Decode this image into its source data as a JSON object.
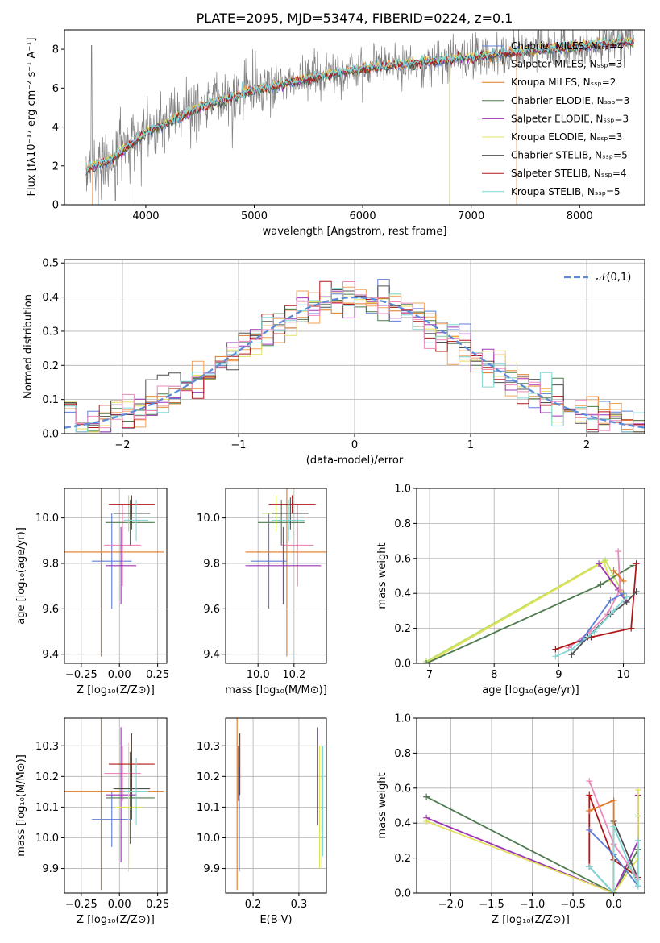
{
  "title": "PLATE=2095, MJD=53474, FIBERID=0224, z=0.1",
  "colors": {
    "Chabrier MILES": "#5b7fd6",
    "Salpeter MILES": "#f2a35a",
    "Kroupa MILES": "#e07820",
    "Chabrier ELODIE": "#4e7a4e",
    "Salpeter ELODIE": "#9b35b5",
    "Kroupa ELODIE": "#e4e060",
    "Chabrier STELIB": "#505050",
    "Salpeter STELIB": "#b01818",
    "Kroupa STELIB": "#7fd7d7",
    "pink": "#ee88bb",
    "lime": "#bde05e",
    "gauss": "#5b8bd6",
    "data": "#808080"
  },
  "chart_data": [
    {
      "type": "line",
      "title": "PLATE=2095, MJD=53474, FIBERID=0224, z=0.1",
      "xlabel": "wavelength [Angstrom, rest frame]",
      "ylabel": "Flux [fλ10⁻¹⁷ erg cm⁻² s⁻¹ A⁻¹]",
      "xlim": [
        3250,
        8600
      ],
      "ylim": [
        0,
        9
      ],
      "xticks": [
        "4000",
        "5000",
        "6000",
        "7000",
        "8000"
      ],
      "yticks": [
        "0",
        "2",
        "4",
        "6",
        "8"
      ],
      "legend": "top-right",
      "legend_entries": [
        "Chabrier MILES, Nₛₛₚ=4",
        "Salpeter MILES, Nₛₛₚ=3",
        "Kroupa MILES, Nₛₛₚ=2",
        "Chabrier ELODIE, Nₛₛₚ=3",
        "Salpeter ELODIE, Nₛₛₚ=3",
        "Kroupa ELODIE, Nₛₛₚ=3",
        "Chabrier STELIB, Nₛₛₚ=5",
        "Salpeter STELIB, Nₛₛₚ=4",
        "Kroupa STELIB, Nₛₛₚ=5"
      ],
      "continuum": {
        "x": [
          3450,
          3700,
          4000,
          4500,
          5000,
          5500,
          6000,
          6500,
          7000,
          7500,
          8000,
          8500
        ],
        "y": [
          1.8,
          2.4,
          3.7,
          5.0,
          5.9,
          6.5,
          7.0,
          7.3,
          7.6,
          7.9,
          8.2,
          8.4
        ]
      }
    },
    {
      "type": "histogram",
      "xlabel": "(data-model)/error",
      "ylabel": "Normed distribution",
      "xlim": [
        -2.5,
        2.5
      ],
      "ylim": [
        0,
        0.51
      ],
      "xticks": [
        "−2",
        "−1",
        "0",
        "1",
        "2"
      ],
      "yticks": [
        "0.0",
        "0.1",
        "0.2",
        "0.3",
        "0.4",
        "0.5"
      ],
      "legend": "top-right",
      "legend_entry": "𝒩(0,1)",
      "grid": true,
      "bins": {
        "start": -2.5,
        "width": 0.1,
        "count": 50
      }
    },
    {
      "type": "errorbar",
      "xlabel": "Z [log₁₀(Z/Z⊙)]",
      "ylabel": "age  [log₁₀(age/yr)]",
      "xlim": [
        -0.36,
        0.31
      ],
      "ylim": [
        9.36,
        10.13
      ],
      "xticks": [
        "−0.25",
        "0.00",
        "0.25"
      ],
      "yticks": [
        "9.4",
        "9.6",
        "9.8",
        "10.0"
      ],
      "grid": true,
      "points": [
        {
          "x": -0.05,
          "y": 9.81,
          "xerr": 0.13,
          "yerr": 0.21,
          "c": "Chabrier MILES"
        },
        {
          "x": -0.12,
          "y": 9.85,
          "xerr": 0.41,
          "yerr": 0.46,
          "c": "Kroupa MILES"
        },
        {
          "x": 0.02,
          "y": 9.88,
          "xerr": 0.12,
          "yerr": 0.18,
          "c": "pink"
        },
        {
          "x": 0.07,
          "y": 9.98,
          "xerr": 0.16,
          "yerr": 0.1,
          "c": "Chabrier ELODIE"
        },
        {
          "x": 0.01,
          "y": 9.79,
          "xerr": 0.1,
          "yerr": 0.17,
          "c": "Salpeter ELODIE"
        },
        {
          "x": 0.06,
          "y": 10.02,
          "xerr": 0.09,
          "yerr": 0.08,
          "c": "lime"
        },
        {
          "x": 0.08,
          "y": 10.02,
          "xerr": 0.12,
          "yerr": 0.07,
          "c": "Chabrier STELIB"
        },
        {
          "x": 0.08,
          "y": 10.06,
          "xerr": 0.15,
          "yerr": 0.04,
          "c": "Salpeter STELIB"
        },
        {
          "x": 0.11,
          "y": 9.99,
          "xerr": 0.08,
          "yerr": 0.09,
          "c": "Kroupa STELIB"
        }
      ]
    },
    {
      "type": "errorbar",
      "xlabel": "mass [log₁₀(M/M⊙)]",
      "xlim": [
        9.82,
        10.38
      ],
      "ylim": [
        9.36,
        10.13
      ],
      "xticks": [
        "10.0",
        "10.2"
      ],
      "yticks": [
        "9.4",
        "9.6",
        "9.8",
        "10.0"
      ],
      "grid": true,
      "points": [
        {
          "x": 10.06,
          "y": 9.81,
          "xerr": 0.1,
          "yerr": 0.21,
          "c": "Chabrier MILES"
        },
        {
          "x": 10.16,
          "y": 9.85,
          "xerr": 0.23,
          "yerr": 0.46,
          "c": "Kroupa MILES"
        },
        {
          "x": 10.22,
          "y": 9.88,
          "xerr": 0.09,
          "yerr": 0.18,
          "c": "pink"
        },
        {
          "x": 10.13,
          "y": 9.98,
          "xerr": 0.13,
          "yerr": 0.1,
          "c": "Chabrier ELODIE"
        },
        {
          "x": 10.14,
          "y": 9.79,
          "xerr": 0.21,
          "yerr": 0.17,
          "c": "Salpeter ELODIE"
        },
        {
          "x": 10.1,
          "y": 10.02,
          "xerr": 0.08,
          "yerr": 0.08,
          "c": "lime"
        },
        {
          "x": 10.18,
          "y": 10.02,
          "xerr": 0.1,
          "yerr": 0.07,
          "c": "Chabrier STELIB"
        },
        {
          "x": 10.19,
          "y": 10.06,
          "xerr": 0.13,
          "yerr": 0.04,
          "c": "Salpeter STELIB"
        },
        {
          "x": 10.17,
          "y": 9.99,
          "xerr": 0.09,
          "yerr": 0.09,
          "c": "Kroupa STELIB"
        }
      ]
    },
    {
      "type": "line",
      "xlabel": "age  [log₁₀(age/yr)]",
      "ylabel": "mass weight",
      "xlim": [
        6.8,
        10.33
      ],
      "ylim": [
        0,
        1
      ],
      "xticks": [
        "7",
        "8",
        "9",
        "10"
      ],
      "yticks": [
        "0.0",
        "0.2",
        "0.4",
        "0.6",
        "0.8",
        "1.0"
      ],
      "grid": true,
      "series": [
        {
          "c": "lime",
          "x": [
            6.95,
            9.72,
            9.85,
            10.02
          ],
          "y": [
            0.01,
            0.59,
            0.5,
            0.38
          ]
        },
        {
          "c": "Kroupa ELODIE",
          "x": [
            6.95,
            9.7,
            9.8,
            10.0
          ],
          "y": [
            0.0,
            0.58,
            0.47,
            0.4
          ]
        },
        {
          "c": "Chabrier ELODIE",
          "x": [
            6.95,
            9.65,
            10.15
          ],
          "y": [
            0.0,
            0.45,
            0.56
          ]
        },
        {
          "c": "Salpeter ELODIE",
          "x": [
            9.62,
            9.92,
            10.05
          ],
          "y": [
            0.57,
            0.42,
            0.35
          ]
        },
        {
          "c": "pink",
          "x": [
            9.15,
            9.48,
            9.75,
            9.95,
            9.92
          ],
          "y": [
            0.09,
            0.18,
            0.28,
            0.42,
            0.64
          ]
        },
        {
          "c": "Salpeter STELIB",
          "x": [
            8.95,
            9.5,
            10.12,
            10.2
          ],
          "y": [
            0.08,
            0.15,
            0.2,
            0.57
          ]
        },
        {
          "c": "Chabrier STELIB",
          "x": [
            9.2,
            9.45,
            9.8,
            10.05,
            10.2
          ],
          "y": [
            0.05,
            0.15,
            0.28,
            0.35,
            0.41
          ]
        },
        {
          "c": "Kroupa STELIB",
          "x": [
            8.95,
            9.2,
            9.55,
            9.85,
            10.05
          ],
          "y": [
            0.04,
            0.08,
            0.18,
            0.3,
            0.38
          ]
        },
        {
          "c": "Chabrier MILES",
          "x": [
            9.35,
            9.8,
            10.0
          ],
          "y": [
            0.13,
            0.36,
            0.4
          ]
        },
        {
          "c": "Kroupa MILES",
          "x": [
            9.85,
            10.0
          ],
          "y": [
            0.53,
            0.47
          ]
        }
      ]
    },
    {
      "type": "errorbar",
      "xlabel": "Z [log₁₀(Z/Z⊙)]",
      "ylabel": "mass [log₁₀(M/M⊙)]",
      "xlim": [
        -0.36,
        0.31
      ],
      "ylim": [
        9.82,
        10.39
      ],
      "xticks": [
        "−0.25",
        "0.00",
        "0.25"
      ],
      "yticks": [
        "9.9",
        "10.0",
        "10.1",
        "10.2",
        "10.3"
      ],
      "grid": true,
      "points": [
        {
          "x": -0.05,
          "y": 10.06,
          "xerr": 0.13,
          "yerr": 0.09,
          "c": "Chabrier MILES"
        },
        {
          "x": -0.12,
          "y": 10.15,
          "xerr": 0.41,
          "yerr": 0.32,
          "c": "Kroupa MILES"
        },
        {
          "x": 0.02,
          "y": 10.21,
          "xerr": 0.12,
          "yerr": 0.09,
          "c": "pink"
        },
        {
          "x": 0.07,
          "y": 10.13,
          "xerr": 0.16,
          "yerr": 0.15,
          "c": "Chabrier ELODIE"
        },
        {
          "x": 0.01,
          "y": 10.14,
          "xerr": 0.1,
          "yerr": 0.22,
          "c": "Salpeter ELODIE"
        },
        {
          "x": 0.06,
          "y": 10.1,
          "xerr": 0.09,
          "yerr": 0.21,
          "c": "Kroupa ELODIE"
        },
        {
          "x": 0.08,
          "y": 10.16,
          "xerr": 0.12,
          "yerr": 0.1,
          "c": "Chabrier STELIB"
        },
        {
          "x": 0.08,
          "y": 10.24,
          "xerr": 0.15,
          "yerr": 0.1,
          "c": "Salpeter STELIB"
        },
        {
          "x": 0.11,
          "y": 10.15,
          "xerr": 0.08,
          "yerr": 0.11,
          "c": "Kroupa STELIB"
        }
      ]
    },
    {
      "type": "errorbar",
      "xlabel": "E(B-V)",
      "xlim": [
        0.14,
        0.36
      ],
      "ylim": [
        9.82,
        10.39
      ],
      "xticks": [
        "0.2",
        "0.3"
      ],
      "yticks": [
        "9.9",
        "10.0",
        "10.1",
        "10.2",
        "10.3"
      ],
      "grid": true,
      "points": [
        {
          "x": 0.17,
          "y": 10.06,
          "yerr": 0.17,
          "c": "Chabrier MILES"
        },
        {
          "x": 0.165,
          "y": 10.15,
          "yerr": 0.32,
          "c": "Kroupa MILES"
        },
        {
          "x": 0.168,
          "y": 10.21,
          "yerr": 0.09,
          "c": "pink"
        },
        {
          "x": 0.168,
          "y": 10.21,
          "yerr": 0.09,
          "c": "Chabrier STELIB"
        },
        {
          "x": 0.171,
          "y": 10.24,
          "yerr": 0.1,
          "c": "Salpeter STELIB"
        },
        {
          "x": 0.34,
          "y": 10.2,
          "yerr": 0.16,
          "c": "Salpeter ELODIE"
        },
        {
          "x": 0.345,
          "y": 10.1,
          "yerr": 0.2,
          "c": "Kroupa ELODIE"
        },
        {
          "x": 0.35,
          "y": 10.1,
          "yerr": 0.2,
          "c": "lime"
        },
        {
          "x": 0.352,
          "y": 10.12,
          "yerr": 0.18,
          "c": "Kroupa STELIB"
        }
      ]
    },
    {
      "type": "line",
      "xlabel": "Z [log₁₀(Z/Z⊙)]",
      "ylabel": "mass weight",
      "xlim": [
        -2.42,
        0.38
      ],
      "ylim": [
        0,
        1
      ],
      "xticks": [
        "−2.0",
        "−1.5",
        "−1.0",
        "−0.5",
        "0.0"
      ],
      "yticks": [
        "0.0",
        "0.2",
        "0.4",
        "0.6",
        "0.8",
        "1.0"
      ],
      "grid": true,
      "series": [
        {
          "c": "Chabrier ELODIE",
          "x": [
            -2.3,
            0.0,
            0.3,
            0.3
          ],
          "y": [
            0.55,
            0.0,
            0.25,
            0.44
          ]
        },
        {
          "c": "Salpeter ELODIE",
          "x": [
            -2.3,
            0.0,
            0.3,
            0.3
          ],
          "y": [
            0.43,
            0.0,
            0.3,
            0.56
          ]
        },
        {
          "c": "Kroupa ELODIE",
          "x": [
            -2.3,
            0.0,
            0.3,
            0.3
          ],
          "y": [
            0.41,
            0.0,
            0.2,
            0.59
          ]
        },
        {
          "c": "Salpeter STELIB",
          "x": [
            -0.3,
            -0.3,
            0.0,
            0.3
          ],
          "y": [
            0.15,
            0.56,
            0.19,
            0.09
          ]
        },
        {
          "c": "Chabrier STELIB",
          "x": [
            -0.3,
            0.0,
            0.0,
            0.3
          ],
          "y": [
            0.15,
            0.0,
            0.41,
            0.08
          ]
        },
        {
          "c": "Kroupa MILES",
          "x": [
            -0.3,
            0.0,
            0.0
          ],
          "y": [
            0.47,
            0.53,
            0.0
          ]
        },
        {
          "c": "pink",
          "x": [
            -0.3,
            0.0,
            0.3
          ],
          "y": [
            0.64,
            0.28,
            0.08
          ]
        },
        {
          "c": "Chabrier MILES",
          "x": [
            -0.3,
            0.0,
            0.3
          ],
          "y": [
            0.36,
            0.22,
            0.04
          ]
        },
        {
          "c": "Kroupa STELIB",
          "x": [
            -0.3,
            0.0,
            0.0,
            0.3,
            0.3
          ],
          "y": [
            0.15,
            0.0,
            0.38,
            0.04,
            0.3
          ]
        }
      ]
    }
  ]
}
